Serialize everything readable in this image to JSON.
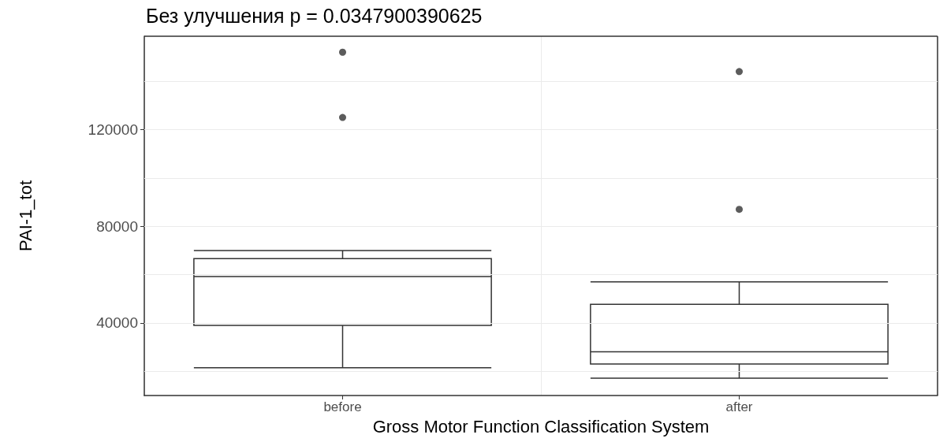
{
  "chart_data": {
    "type": "box",
    "title": "Без улучшения p = 0.0347900390625",
    "xlabel": "Gross Motor Function Classification System",
    "ylabel": "PAI-1_tot",
    "categories": [
      "before",
      "after"
    ],
    "boxes": [
      {
        "low": 21500,
        "q1": 39000,
        "median": 59200,
        "q3": 66600,
        "high": 70000,
        "outliers": [
          152000,
          125000
        ]
      },
      {
        "low": 17200,
        "q1": 23000,
        "median": 28100,
        "q3": 47700,
        "high": 57000,
        "outliers": [
          144000,
          87000
        ]
      }
    ],
    "color": "#333333",
    "ylim": [
      10000,
      158600
    ],
    "yticks": [
      {
        "value": 20000,
        "label": null
      },
      40000,
      {
        "value": 60000,
        "label": null
      },
      80000,
      {
        "value": 100000,
        "label": null
      },
      120000,
      {
        "value": 140000,
        "label": null
      }
    ],
    "grid": true
  }
}
